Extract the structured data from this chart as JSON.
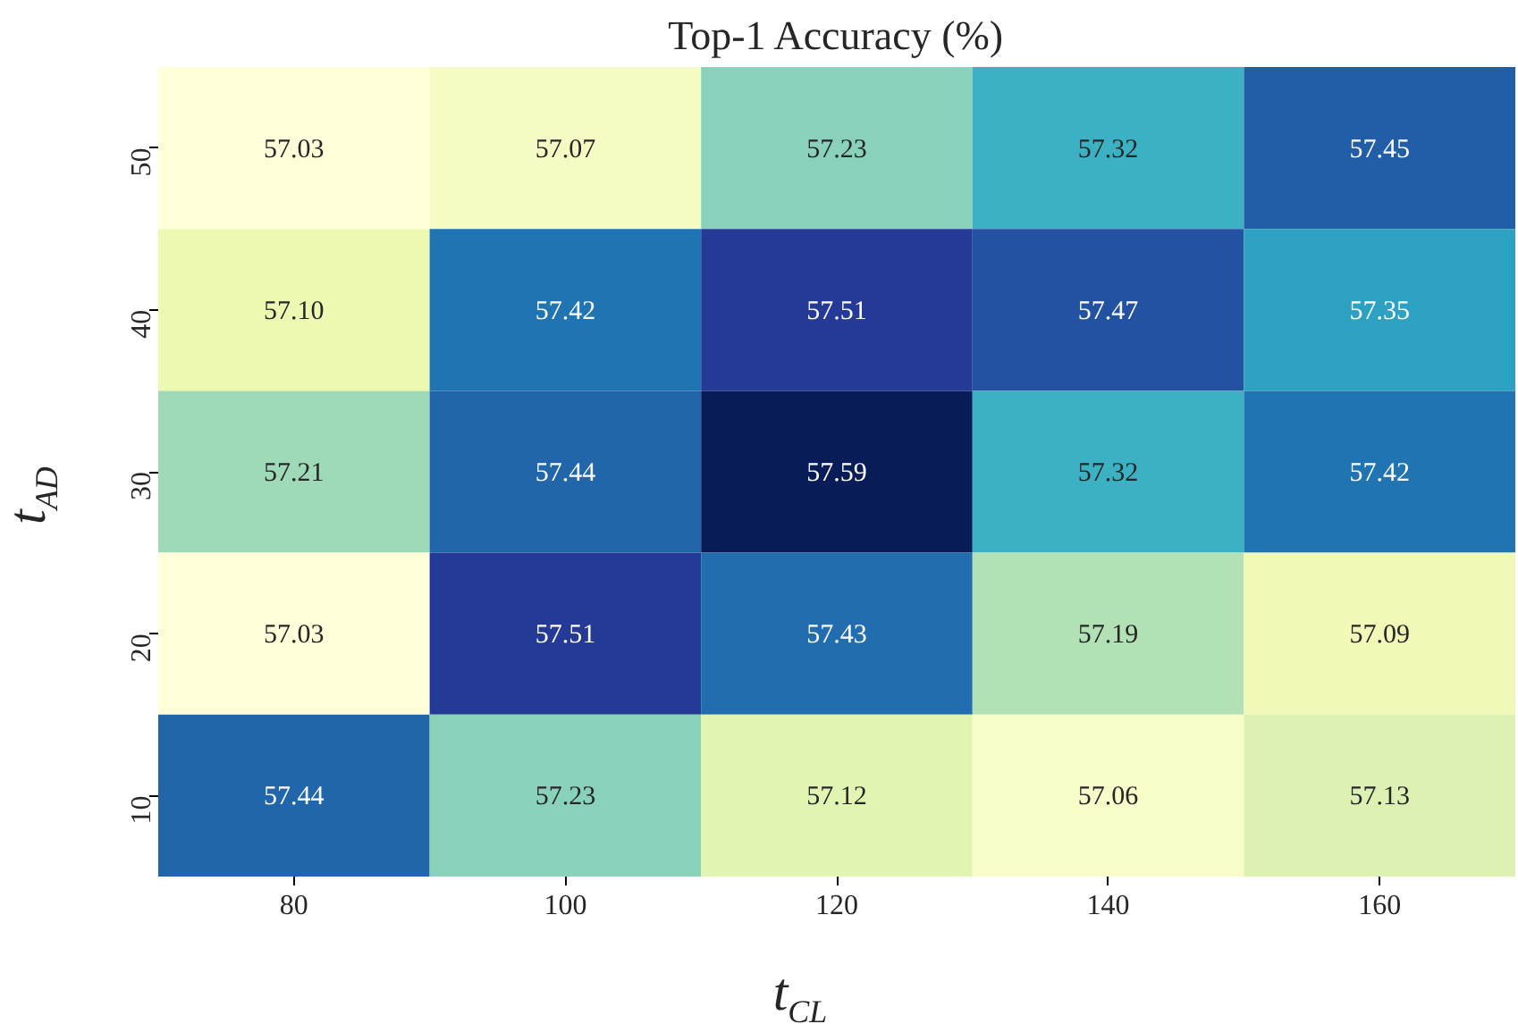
{
  "chart_data": {
    "type": "heatmap",
    "title": "Top-1 Accuracy (%)",
    "xlabel": "t$_{CL}$",
    "ylabel": "t$_{AD}$",
    "categories": [
      "80",
      "100",
      "120",
      "140",
      "160"
    ],
    "y_categories": [
      "50",
      "40",
      "30",
      "20",
      "10"
    ],
    "cells": [
      [
        57.03,
        57.07,
        57.23,
        57.32,
        57.45
      ],
      [
        57.1,
        57.42,
        57.51,
        57.47,
        57.35
      ],
      [
        57.21,
        57.44,
        57.59,
        57.32,
        57.42
      ],
      [
        57.03,
        57.51,
        57.43,
        57.19,
        57.09
      ],
      [
        57.44,
        57.23,
        57.12,
        57.06,
        57.13
      ]
    ],
    "cell_labels": [
      [
        "57.03",
        "57.07",
        "57.23",
        "57.32",
        "57.45"
      ],
      [
        "57.10",
        "57.42",
        "57.51",
        "57.47",
        "57.35"
      ],
      [
        "57.21",
        "57.44",
        "57.59",
        "57.32",
        "57.42"
      ],
      [
        "57.03",
        "57.51",
        "57.43",
        "57.19",
        "57.09"
      ],
      [
        "57.44",
        "57.23",
        "57.12",
        "57.06",
        "57.13"
      ]
    ],
    "data_labels": true,
    "grid": false
  }
}
